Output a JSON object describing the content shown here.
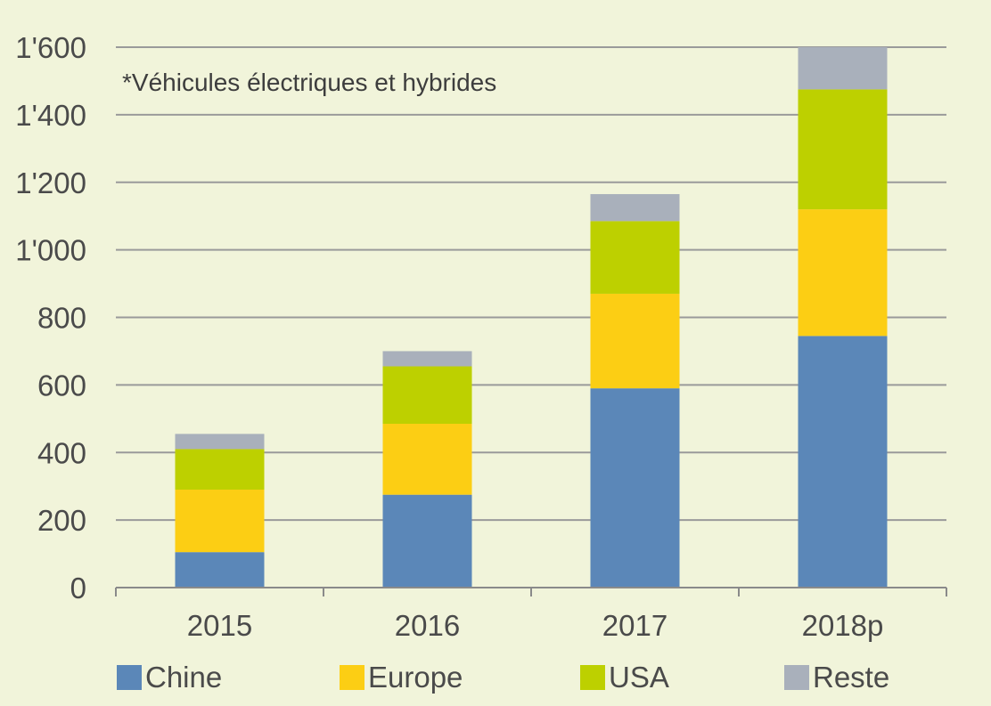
{
  "chart_data": {
    "type": "bar",
    "stacked": true,
    "categories": [
      "2015",
      "2016",
      "2017",
      "2018p"
    ],
    "series": [
      {
        "name": "Chine",
        "color": "#5b87b8",
        "values": [
          105,
          275,
          590,
          745
        ]
      },
      {
        "name": "Europe",
        "color": "#fcce14",
        "values": [
          185,
          210,
          280,
          375
        ]
      },
      {
        "name": "USA",
        "color": "#bdd000",
        "values": [
          120,
          170,
          215,
          355
        ]
      },
      {
        "name": "Reste",
        "color": "#a9b0bb",
        "values": [
          45,
          45,
          80,
          125
        ]
      }
    ],
    "ylim": [
      0,
      1600
    ],
    "yticks": [
      0,
      200,
      400,
      600,
      800,
      1000,
      1200,
      1400,
      1600
    ],
    "ytick_labels": [
      "0",
      "200",
      "400",
      "600",
      "800",
      "1'000",
      "1'200",
      "1'400",
      "1'600"
    ],
    "annotation": "*Véhicules électriques et hybrides",
    "grid": true,
    "legend_position": "bottom"
  }
}
